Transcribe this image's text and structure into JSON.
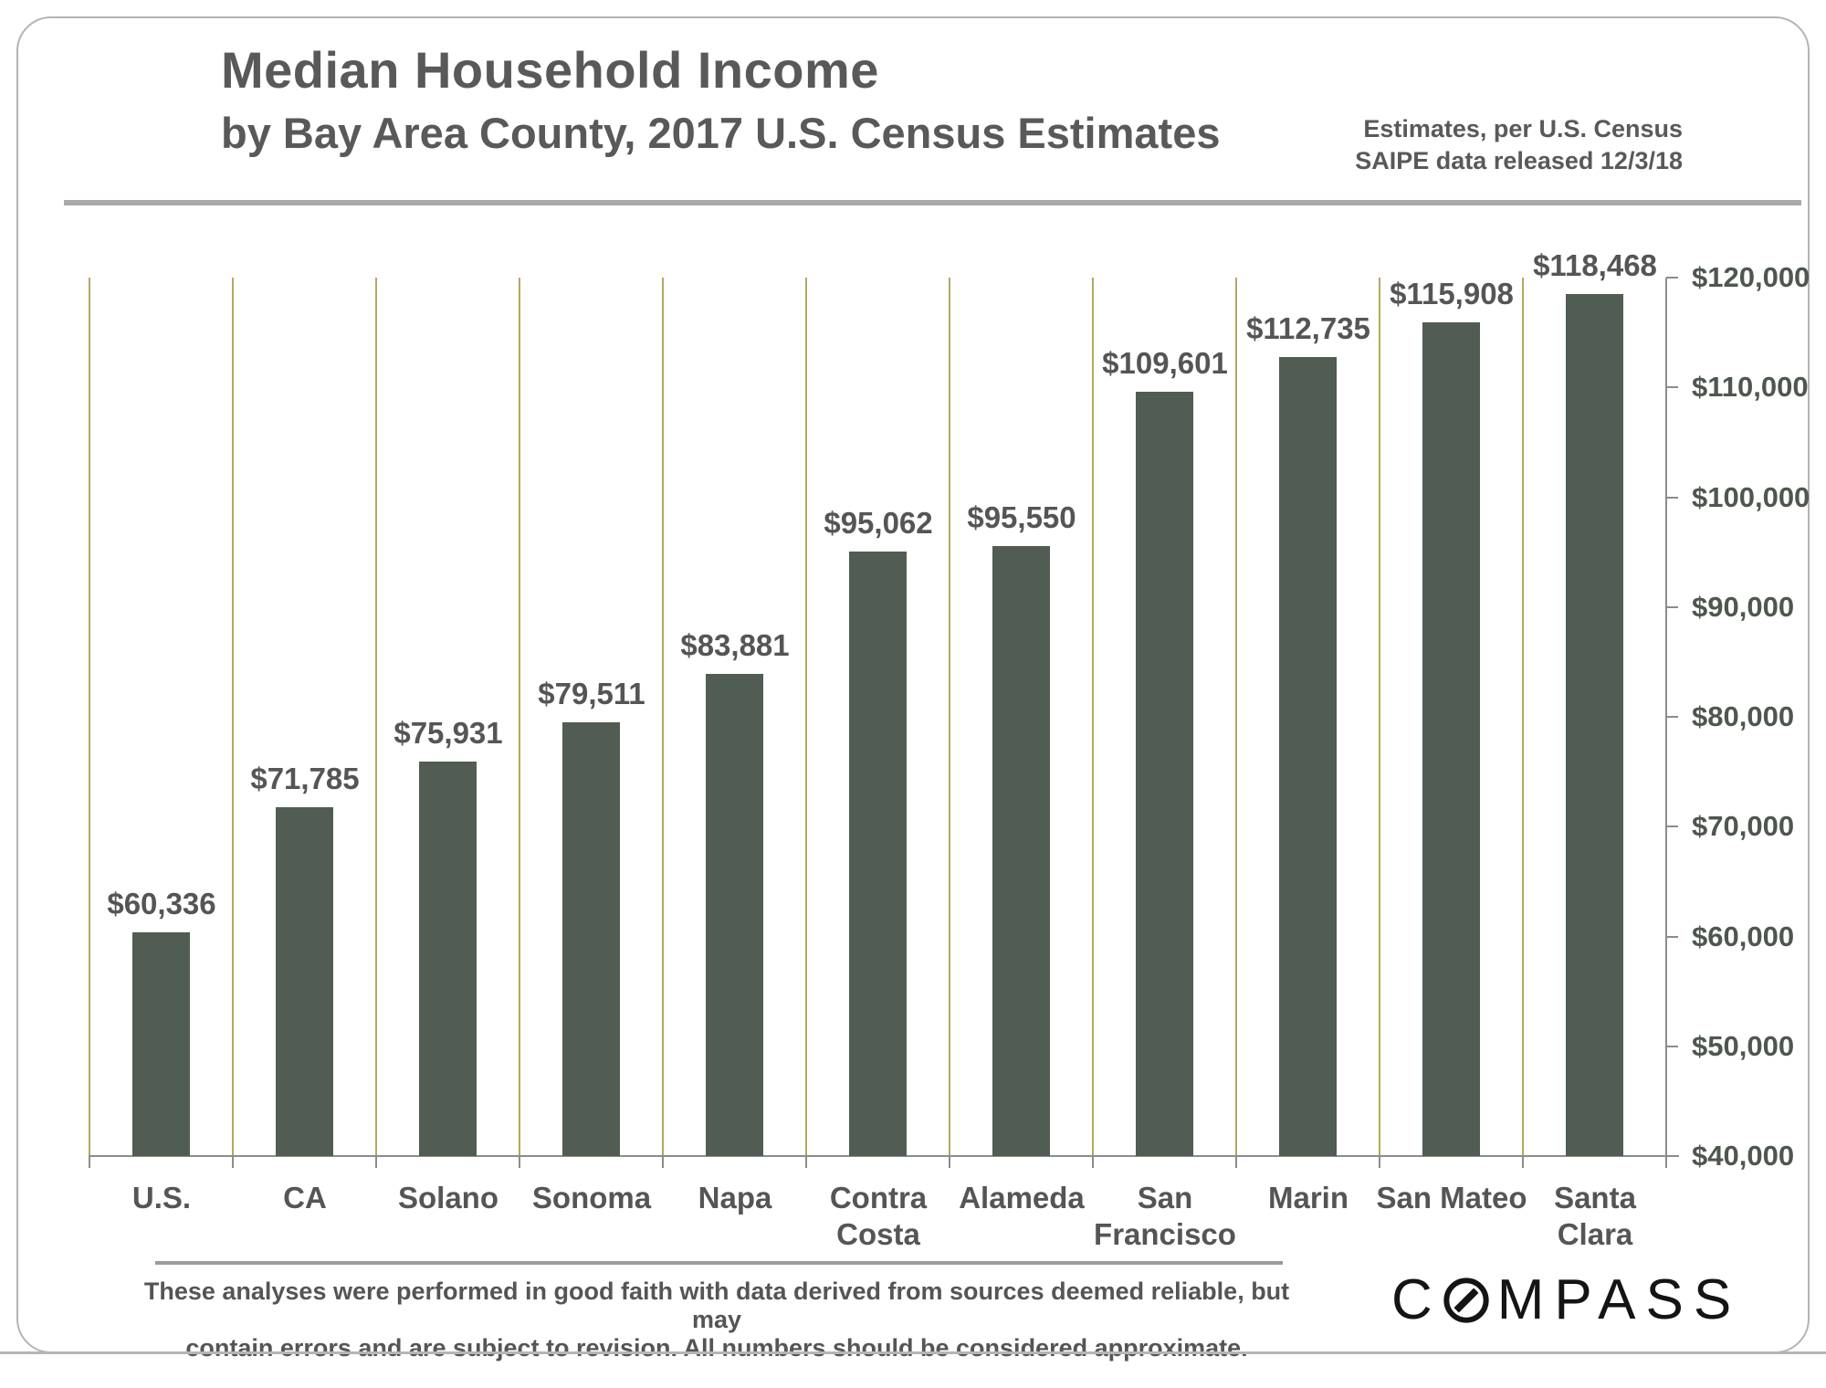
{
  "header": {
    "title": "Median Household Income",
    "subtitle": "by Bay Area County, 2017 U.S. Census Estimates",
    "note_line1": "Estimates, per U.S. Census",
    "note_line2": "SAIPE data released 12/3/18"
  },
  "chart_data": {
    "type": "bar",
    "title": "Median Household Income",
    "subtitle": "by Bay Area County, 2017 U.S. Census Estimates",
    "categories": [
      "U.S.",
      "CA",
      "Solano",
      "Sonoma",
      "Napa",
      "Contra Costa",
      "Alameda",
      "San Francisco",
      "Marin",
      "San Mateo",
      "Santa Clara"
    ],
    "category_label_lines": [
      [
        "U.S."
      ],
      [
        "CA"
      ],
      [
        "Solano"
      ],
      [
        "Sonoma"
      ],
      [
        "Napa"
      ],
      [
        "Contra",
        "Costa"
      ],
      [
        "Alameda"
      ],
      [
        "San",
        "Francisco"
      ],
      [
        "Marin"
      ],
      [
        "San Mateo"
      ],
      [
        "Santa",
        "Clara"
      ]
    ],
    "values": [
      60336,
      71785,
      75931,
      79511,
      83881,
      95062,
      95550,
      109601,
      112735,
      115908,
      118468
    ],
    "value_labels": [
      "$60,336",
      "$71,785",
      "$75,931",
      "$79,511",
      "$83,881",
      "$95,062",
      "$95,550",
      "$109,601",
      "$112,735",
      "$115,908",
      "$118,468"
    ],
    "ylim": [
      40000,
      120000
    ],
    "ytick_step": 10000,
    "ytick_labels": [
      "$40,000",
      "$50,000",
      "$60,000",
      "$70,000",
      "$80,000",
      "$90,000",
      "$100,000",
      "$110,000",
      "$120,000"
    ],
    "yaxis_side": "right",
    "grid": "vertical-only",
    "legend": "none",
    "xlabel": "",
    "ylabel": "",
    "bar_color": "#515C52",
    "gridline_color": "#B3A95F",
    "axis_color": "#8C8C8C",
    "ytick_label_color": "#4E574E",
    "value_label_color": "#555555",
    "xcat_label_color": "#555555"
  },
  "footer": {
    "disclaimer_line1": "These analyses were performed in good faith with data derived from sources deemed reliable, but may",
    "disclaimer_line2": "contain errors and are subject to revision.  All numbers should be considered approximate.",
    "logo_name": "COMPASS",
    "logo_text_c": "C",
    "logo_text_rest": "MPASS"
  }
}
